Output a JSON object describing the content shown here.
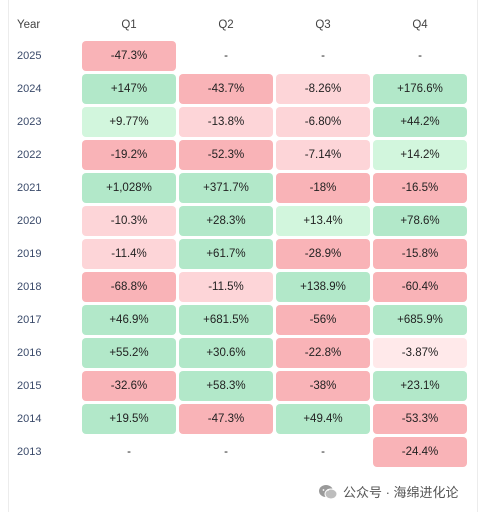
{
  "header": {
    "year": "Year",
    "q1": "Q1",
    "q2": "Q2",
    "q3": "Q3",
    "q4": "Q4"
  },
  "rows": [
    {
      "year": "2025",
      "cells": [
        "-47.3%",
        "-",
        "-",
        "-"
      ],
      "classes": [
        "strong-neg",
        "empty",
        "empty",
        "empty"
      ]
    },
    {
      "year": "2024",
      "cells": [
        "+147%",
        "-43.7%",
        "-8.26%",
        "+176.6%"
      ],
      "classes": [
        "strong-pos",
        "strong-neg",
        "neg",
        "strong-pos"
      ]
    },
    {
      "year": "2023",
      "cells": [
        "+9.77%",
        "-13.8%",
        "-6.80%",
        "+44.2%"
      ],
      "classes": [
        "pos",
        "neg",
        "neg",
        "strong-pos"
      ]
    },
    {
      "year": "2022",
      "cells": [
        "-19.2%",
        "-52.3%",
        "-7.14%",
        "+14.2%"
      ],
      "classes": [
        "strong-neg",
        "strong-neg",
        "neg",
        "pos"
      ]
    },
    {
      "year": "2021",
      "cells": [
        "+1,028%",
        "+371.7%",
        "-18%",
        "-16.5%"
      ],
      "classes": [
        "strong-pos",
        "strong-pos",
        "strong-neg",
        "strong-neg"
      ]
    },
    {
      "year": "2020",
      "cells": [
        "-10.3%",
        "+28.3%",
        "+13.4%",
        "+78.6%"
      ],
      "classes": [
        "neg",
        "strong-pos",
        "pos",
        "strong-pos"
      ]
    },
    {
      "year": "2019",
      "cells": [
        "-11.4%",
        "+61.7%",
        "-28.9%",
        "-15.8%"
      ],
      "classes": [
        "neg",
        "strong-pos",
        "strong-neg",
        "strong-neg"
      ]
    },
    {
      "year": "2018",
      "cells": [
        "-68.8%",
        "-11.5%",
        "+138.9%",
        "-60.4%"
      ],
      "classes": [
        "strong-neg",
        "neg",
        "strong-pos",
        "strong-neg"
      ]
    },
    {
      "year": "2017",
      "cells": [
        "+46.9%",
        "+681.5%",
        "-56%",
        "+685.9%"
      ],
      "classes": [
        "strong-pos",
        "strong-pos",
        "strong-neg",
        "strong-pos"
      ]
    },
    {
      "year": "2016",
      "cells": [
        "+55.2%",
        "+30.6%",
        "-22.8%",
        "-3.87%"
      ],
      "classes": [
        "strong-pos",
        "strong-pos",
        "strong-neg",
        "light-neg"
      ]
    },
    {
      "year": "2015",
      "cells": [
        "-32.6%",
        "+58.3%",
        "-38%",
        "+23.1%"
      ],
      "classes": [
        "strong-neg",
        "strong-pos",
        "strong-neg",
        "strong-pos"
      ]
    },
    {
      "year": "2014",
      "cells": [
        "+19.5%",
        "-47.3%",
        "+49.4%",
        "-53.3%"
      ],
      "classes": [
        "strong-pos",
        "strong-neg",
        "strong-pos",
        "strong-neg"
      ]
    },
    {
      "year": "2013",
      "cells": [
        "-",
        "-",
        "-",
        "-24.4%"
      ],
      "classes": [
        "empty",
        "empty",
        "empty",
        "strong-neg"
      ]
    }
  ],
  "watermark": {
    "text": "公众号 · 海绵进化论",
    "icon": "wechat-icon"
  }
}
